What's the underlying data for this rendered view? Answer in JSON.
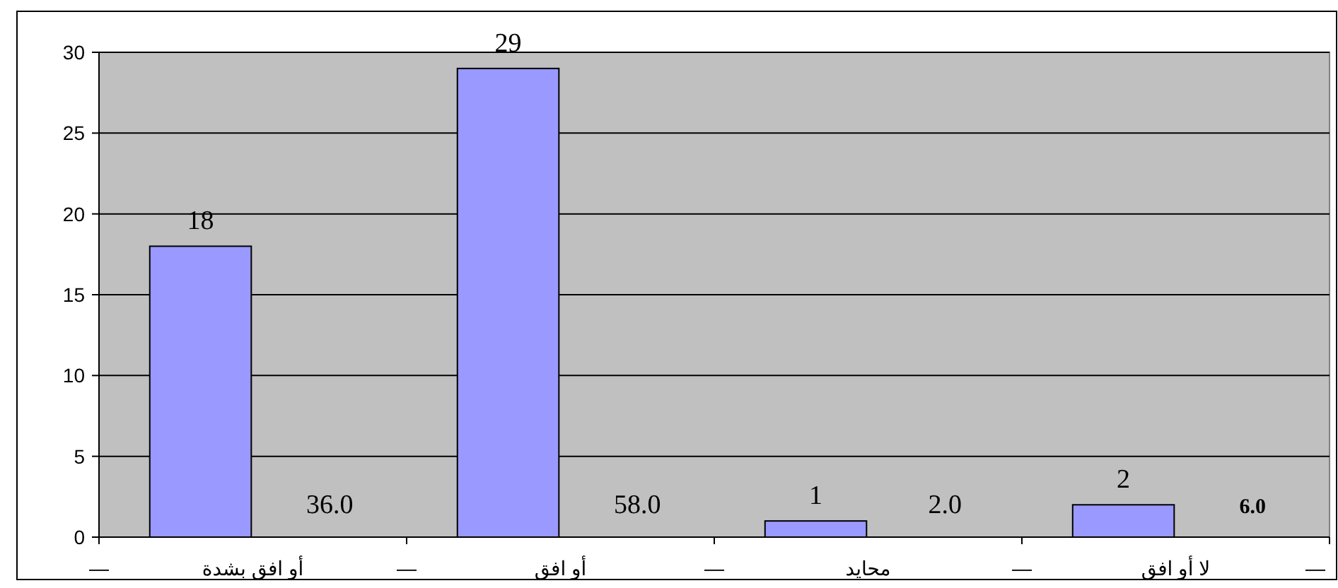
{
  "chart_data": {
    "type": "bar",
    "categories": [
      "أو افق بشدة",
      "أو افق",
      "محايد",
      "لا أو افق"
    ],
    "series": [
      {
        "color": "#9999ff",
        "values": [
          18,
          29,
          1,
          2
        ]
      }
    ],
    "ylim": [
      0,
      30
    ],
    "yticks": [
      0,
      5,
      10,
      15,
      20,
      25,
      30
    ],
    "grid": "y",
    "data_labels": true,
    "annotations": [
      "—",
      "36.0",
      "—",
      "58.0",
      "—",
      "2.0",
      "—",
      "6.0",
      "—"
    ]
  }
}
